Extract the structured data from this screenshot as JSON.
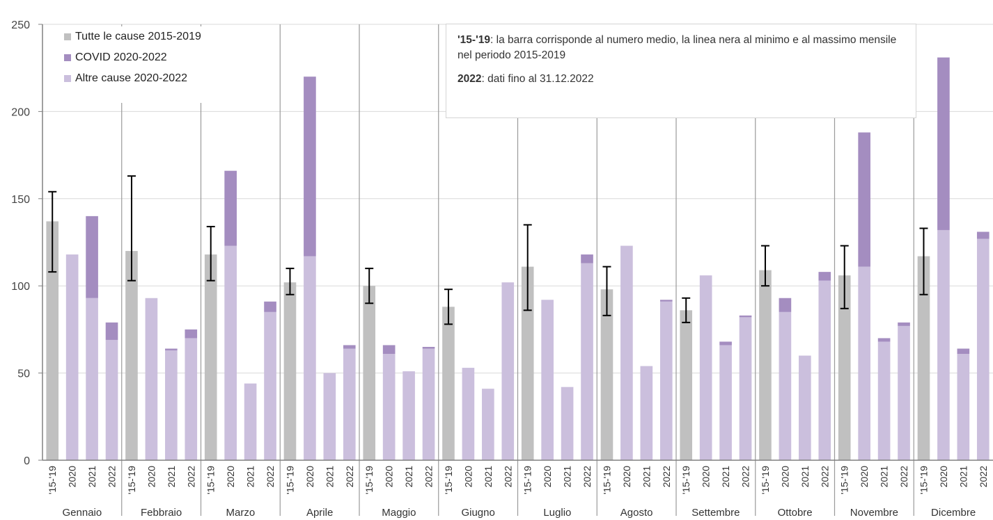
{
  "chart_data": {
    "type": "bar",
    "stacked": true,
    "ylim": [
      0,
      250
    ],
    "yticks": [
      0,
      50,
      100,
      150,
      200,
      250
    ],
    "grid": true,
    "legend_position": "top-left",
    "groups": [
      "Gennaio",
      "Febbraio",
      "Marzo",
      "Aprile",
      "Maggio",
      "Giugno",
      "Luglio",
      "Agosto",
      "Settembre",
      "Ottobre",
      "Novembre",
      "Dicembre"
    ],
    "sub_categories": [
      "'15-'19",
      "2020",
      "2021",
      "2022"
    ],
    "series": [
      {
        "name": "Tutte le cause 2015-2019",
        "color": "#c0c0c0",
        "values": [
          137,
          120,
          118,
          102,
          100,
          88,
          111,
          98,
          86,
          109,
          106,
          117
        ],
        "min": [
          108,
          103,
          103,
          95,
          90,
          78,
          86,
          83,
          79,
          100,
          87,
          95
        ],
        "max": [
          154,
          163,
          134,
          110,
          110,
          98,
          135,
          111,
          93,
          123,
          123,
          133
        ]
      },
      {
        "name": "COVID 2020-2022",
        "color": "#a48dc0",
        "values": [
          [
            0,
            47,
            10
          ],
          [
            0,
            1,
            5
          ],
          [
            43,
            0,
            6
          ],
          [
            103,
            0,
            2
          ],
          [
            5,
            0,
            1
          ],
          [
            0,
            0,
            0
          ],
          [
            0,
            0,
            5
          ],
          [
            0,
            0,
            1
          ],
          [
            0,
            2,
            1
          ],
          [
            8,
            0,
            5
          ],
          [
            77,
            2,
            2
          ],
          [
            99,
            3,
            4
          ]
        ]
      },
      {
        "name": "Altre cause 2020-2022",
        "color": "#cbbfdd",
        "values": [
          [
            118,
            93,
            69
          ],
          [
            93,
            63,
            70
          ],
          [
            123,
            44,
            85
          ],
          [
            117,
            50,
            64
          ],
          [
            61,
            51,
            64
          ],
          [
            53,
            41,
            102
          ],
          [
            92,
            42,
            113
          ],
          [
            123,
            54,
            91
          ],
          [
            106,
            66,
            82
          ],
          [
            85,
            60,
            103
          ],
          [
            111,
            68,
            77
          ],
          [
            132,
            61,
            127
          ]
        ]
      }
    ],
    "note": {
      "p1_bold": "'15-'19",
      "p1_text": ": la barra corrisponde al numero medio, la linea nera al minimo e al massimo mensile nel periodo 2015-2019",
      "p2_bold": "2022",
      "p2_text": ": dati fino al 31.12.2022"
    }
  }
}
